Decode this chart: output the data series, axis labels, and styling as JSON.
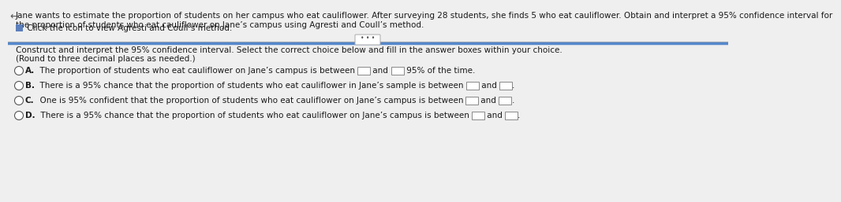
{
  "background_color": "#efefef",
  "text_color": "#1a1a1a",
  "divider_color": "#aaaaaa",
  "top_line1": "Jane wants to estimate the proportion of students on her campus who eat cauliflower. After surveying 28 students, she finds 5 who eat cauliflower. Obtain and interpret a 95% confidence interval for",
  "top_line2": "the proportion of students who eat cauliflower on Jane’s campus using Agresti and Coull’s method.",
  "icon_text": " Click the icon to view Agresti and Coull’s method.",
  "dots_text": "• • •",
  "instr_line1": "Construct and interpret the 95% confidence interval. Select the correct choice below and fill in the answer boxes within your choice.",
  "instr_line2": "(Round to three decimal places as needed.)",
  "choice_A_pre": "A.  The proportion of students who eat cauliflower on Jane’s campus is between ",
  "choice_A_mid": " and ",
  "choice_A_post": " 95% of the time.",
  "choice_B_pre": "B.  There is a 95% chance that the proportion of students who eat cauliflower in Jane’s sample is between ",
  "choice_B_mid": " and ",
  "choice_B_post": ".",
  "choice_C_pre": "C.  One is 95% confident that the proportion of students who eat cauliflower on Jane’s campus is between ",
  "choice_C_mid": " and ",
  "choice_C_post": ".",
  "choice_D_pre": "D.  There is a 95% chance that the proportion of students who eat cauliflower on Jane’s campus is between ",
  "choice_D_mid": " and ",
  "choice_D_post": ".",
  "font_size": 8.5,
  "font_size_small": 7.5
}
